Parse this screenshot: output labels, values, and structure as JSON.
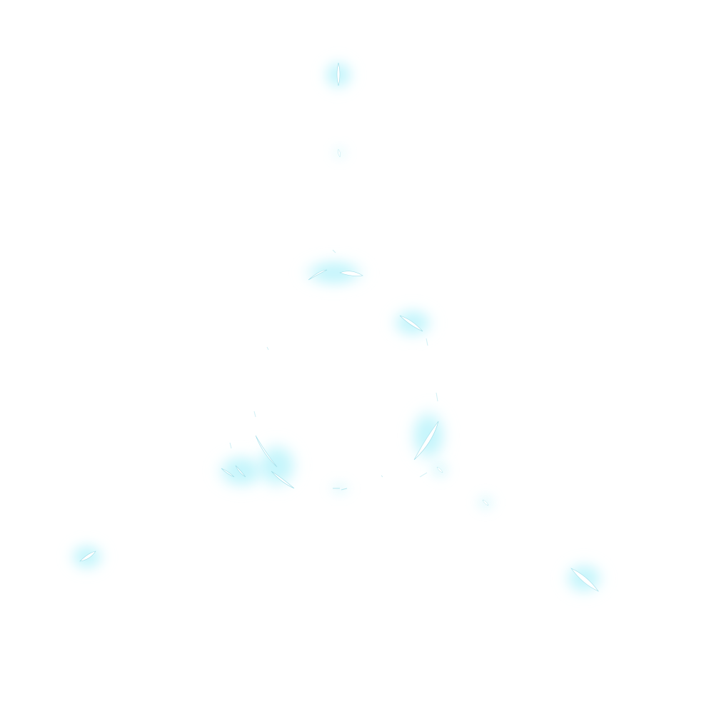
{
  "canvas": {
    "background": "#ffffff",
    "glow_color": "#7fe4f5",
    "glow_core_color": "#c9f6fd",
    "streak_color": "#ffffff",
    "streak_outline": "#9fdde8"
  },
  "particles": [
    {
      "name": "sparkle-top",
      "icon": "sparkle-icon"
    },
    {
      "name": "sparkle-top-small",
      "icon": "sparkle-icon"
    },
    {
      "name": "sparkle-upper-center",
      "icon": "sparkle-icon"
    },
    {
      "name": "sparkle-upper-right",
      "icon": "sparkle-icon"
    },
    {
      "name": "sparkle-right-middle",
      "icon": "sparkle-icon"
    },
    {
      "name": "sparkle-lower-left",
      "icon": "sparkle-icon"
    },
    {
      "name": "sparkle-lower-left-inner",
      "icon": "sparkle-icon"
    },
    {
      "name": "sparkle-lower-right",
      "icon": "sparkle-icon"
    },
    {
      "name": "sparkle-bottom-center",
      "icon": "sparkle-icon"
    },
    {
      "name": "sparkle-right-small",
      "icon": "sparkle-icon"
    },
    {
      "name": "sparkle-far-left",
      "icon": "sparkle-icon"
    },
    {
      "name": "sparkle-far-right",
      "icon": "sparkle-icon"
    }
  ]
}
